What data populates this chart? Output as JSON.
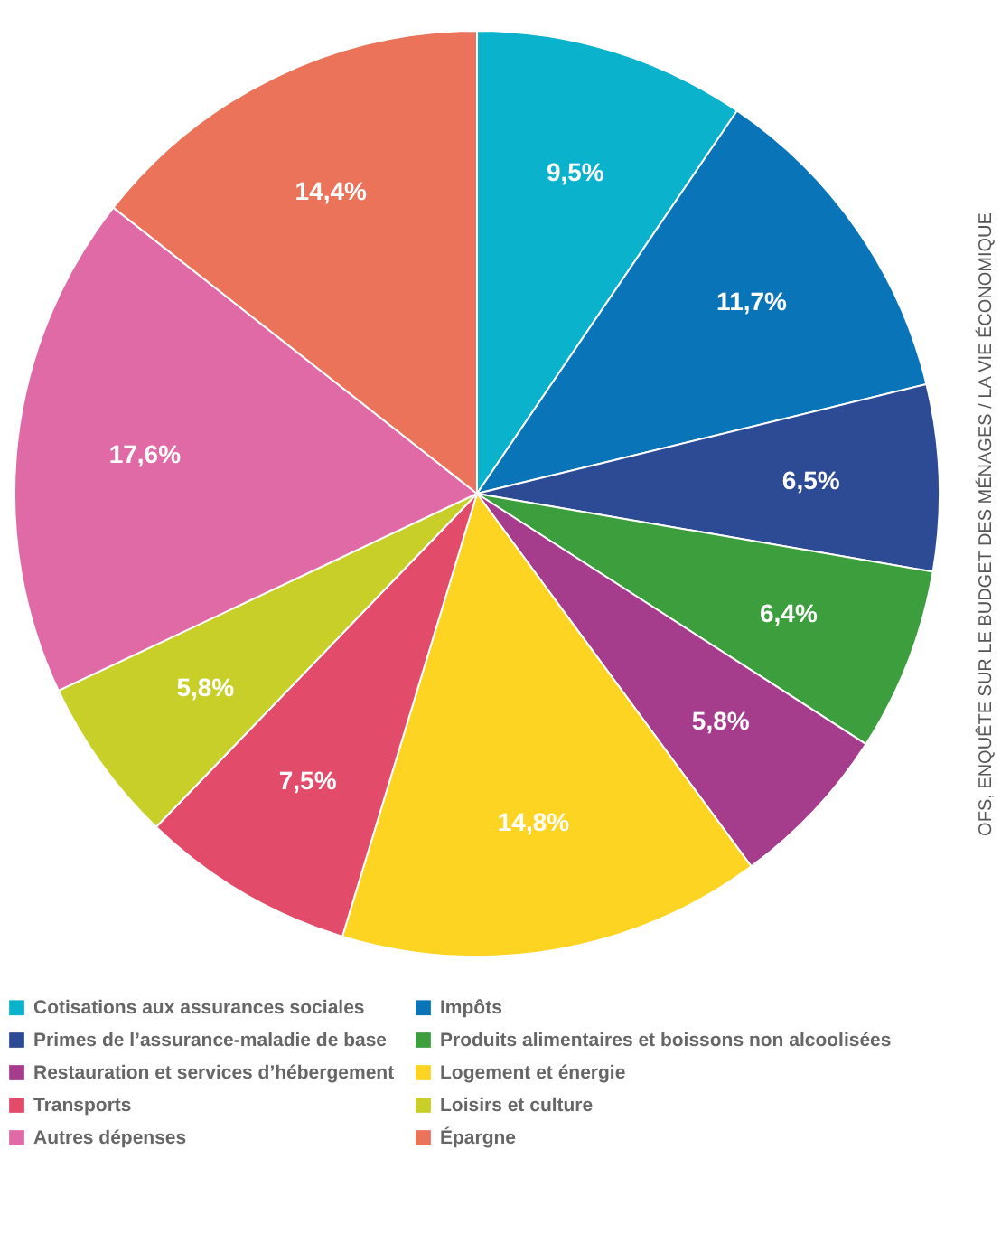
{
  "chart_data": {
    "type": "pie",
    "categories": [
      "Cotisations aux assurances sociales",
      "Impôts",
      "Primes de l’assurance-maladie de base",
      "Produits alimentaires et boissons non alcoolisées",
      "Restauration et services d’hébergement",
      "Logement et énergie",
      "Transports",
      "Loisirs et culture",
      "Autres dépenses",
      "Épargne"
    ],
    "values": [
      9.5,
      11.7,
      6.5,
      6.4,
      5.8,
      14.8,
      7.5,
      5.8,
      17.6,
      14.4
    ],
    "value_labels": [
      "9,5%",
      "11,7%",
      "6,5%",
      "6,4%",
      "5,8%",
      "14,8%",
      "7,5%",
      "5,8%",
      "17,6%",
      "14,4%"
    ],
    "colors": [
      "#0bb2cc",
      "#0a74b8",
      "#2d4a94",
      "#3d9e3e",
      "#a63d8c",
      "#fdd422",
      "#e34b6b",
      "#c8cf29",
      "#df6aa6",
      "#ea735a"
    ],
    "legend": "bottom",
    "annotations": [
      "OFS, ENQUÊTE SUR LE BUDGET DES MÉNAGES / LA VIE ÉCONOMIQUE"
    ]
  }
}
